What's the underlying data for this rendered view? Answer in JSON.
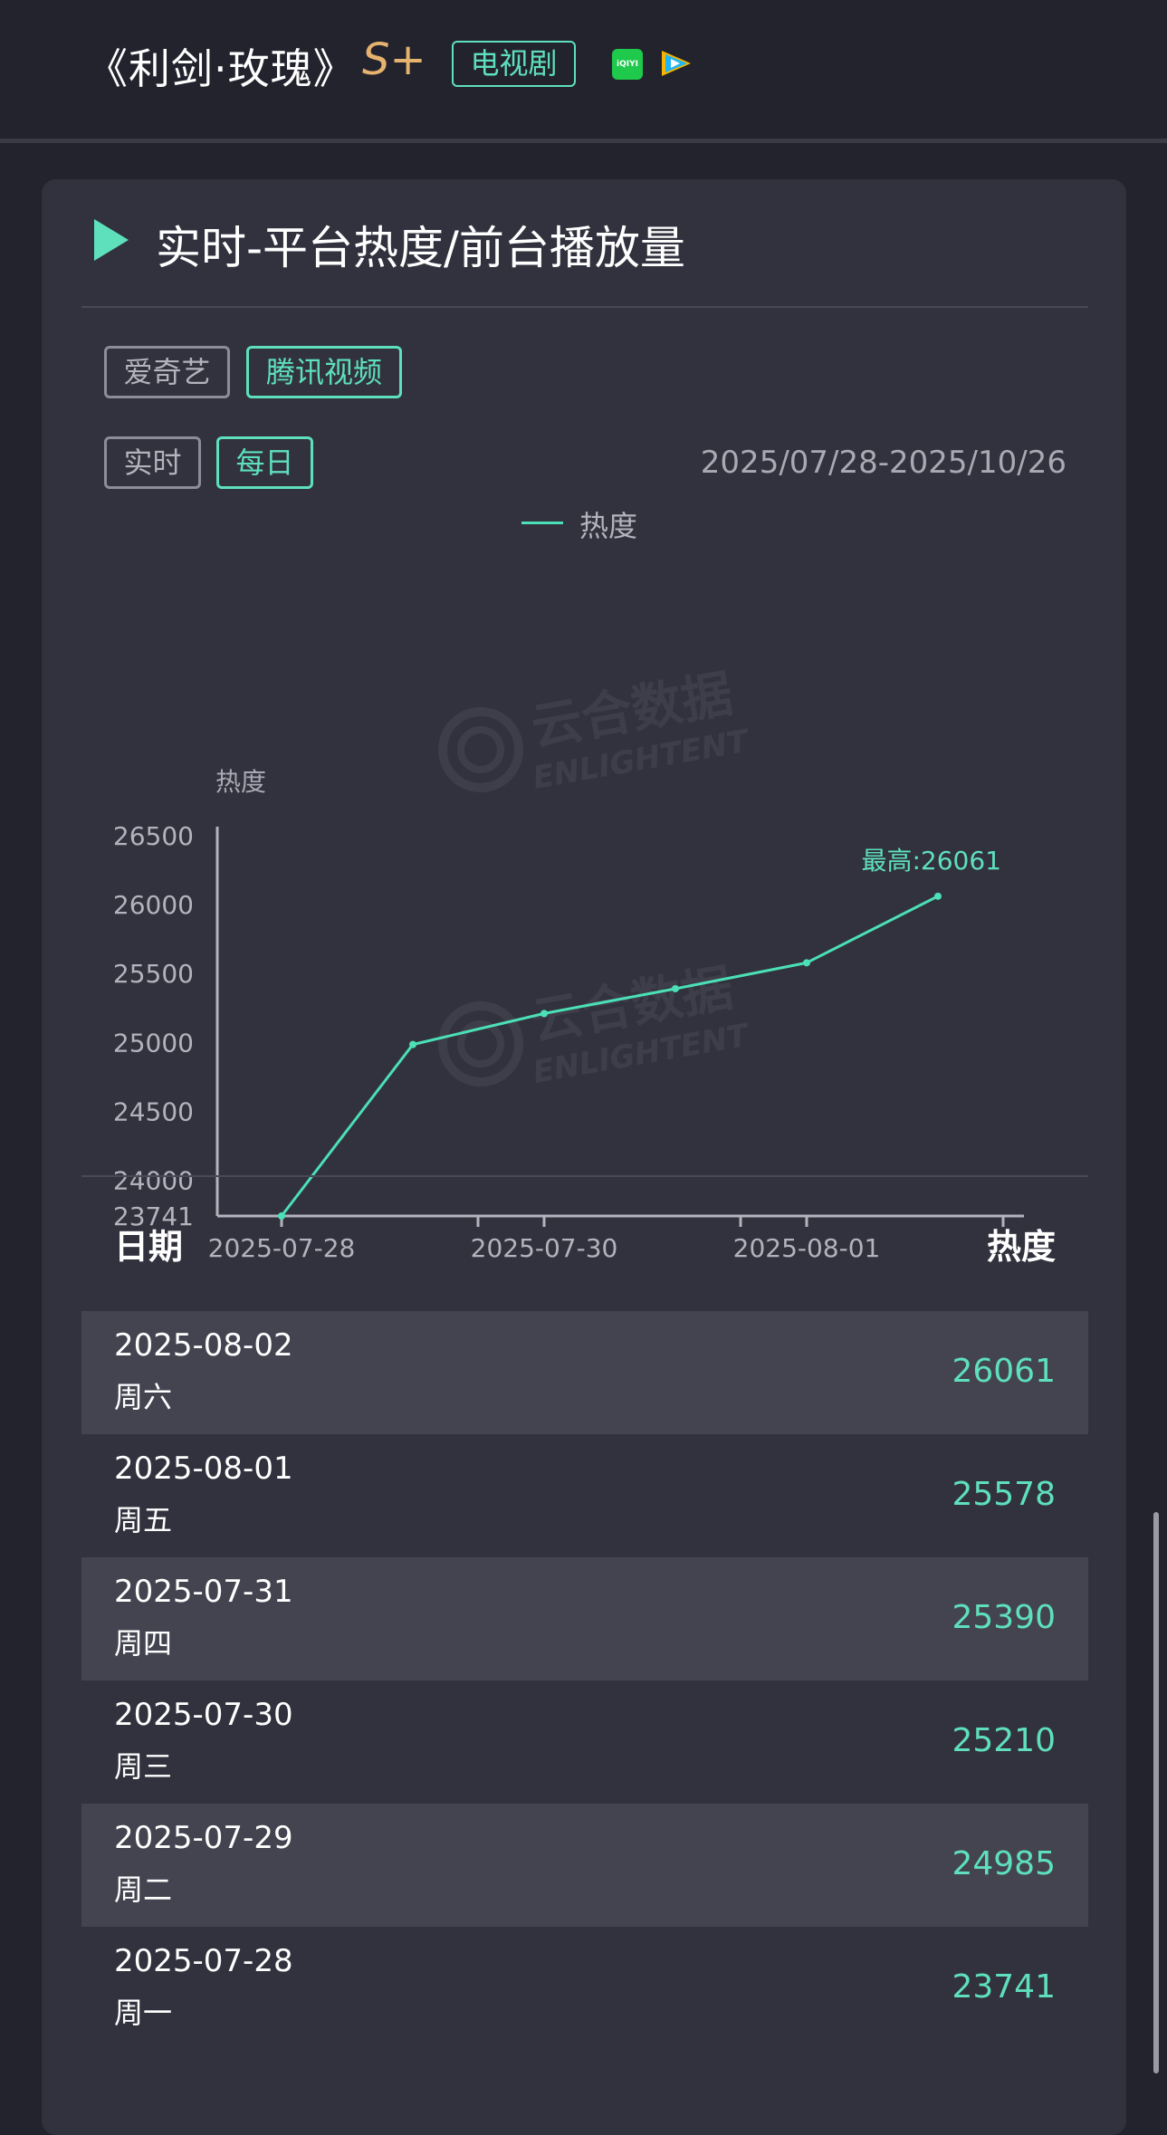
{
  "header": {
    "title": "《利剑·玫瑰》",
    "grade": "S+",
    "type_badge": "电视剧",
    "platform_logos": [
      "iqiyi-logo",
      "tencent-video-logo"
    ],
    "iqiyi_logo_text": "iQIYI"
  },
  "section": {
    "icon": "play-triangle-icon",
    "title": "实时-平台热度/前台播放量"
  },
  "filters": {
    "platforms": [
      {
        "label": "爱奇艺",
        "active": false
      },
      {
        "label": "腾讯视频",
        "active": true
      }
    ],
    "granularity": [
      {
        "label": "实时",
        "active": false
      },
      {
        "label": "每日",
        "active": true
      }
    ],
    "date_range": "2025/07/28-2025/10/26"
  },
  "watermark": {
    "text_cn": "云合数据",
    "text_en": "ENLIGHTENT"
  },
  "chart_data": {
    "type": "line",
    "legend": [
      "热度"
    ],
    "ylabel": "热度",
    "yticks": [
      26500,
      26000,
      25500,
      25000,
      24500,
      24000,
      23741
    ],
    "ylim": [
      23741,
      26500
    ],
    "xticks": [
      "2025-07-28",
      "2025-07-30",
      "2025-08-01"
    ],
    "x": [
      "2025-07-28",
      "2025-07-29",
      "2025-07-30",
      "2025-07-31",
      "2025-08-01",
      "2025-08-02"
    ],
    "series": [
      {
        "name": "热度",
        "values": [
          23741,
          24985,
          25210,
          25390,
          25578,
          26061
        ]
      }
    ],
    "annotation": "最高:26061",
    "color": "#4be0b6"
  },
  "table": {
    "headers": {
      "date": "日期",
      "value": "热度"
    },
    "rows": [
      {
        "date": "2025-08-02",
        "weekday": "周六",
        "value": "26061"
      },
      {
        "date": "2025-08-01",
        "weekday": "周五",
        "value": "25578"
      },
      {
        "date": "2025-07-31",
        "weekday": "周四",
        "value": "25390"
      },
      {
        "date": "2025-07-30",
        "weekday": "周三",
        "value": "25210"
      },
      {
        "date": "2025-07-29",
        "weekday": "周二",
        "value": "24985"
      },
      {
        "date": "2025-07-28",
        "weekday": "周一",
        "value": "23741"
      }
    ]
  },
  "colors": {
    "accent": "#5ee0bc",
    "grade": "#e6b36f",
    "background": "#23232e",
    "card": "#32323f",
    "row_stripe": "#444451"
  }
}
